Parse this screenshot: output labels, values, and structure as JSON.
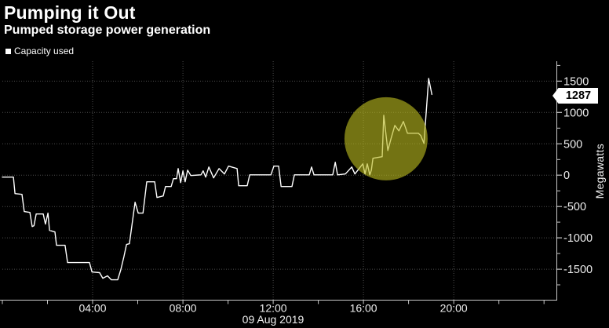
{
  "header": {
    "title": "Pumping it Out",
    "subtitle": "Pumped storage power generation",
    "legend": {
      "label": "Capacity used",
      "marker_color": "#ffffff"
    }
  },
  "colors": {
    "background": "#000000",
    "line": "#ffffff",
    "axis": "#c9c9c9",
    "grid": "#4d4d4d",
    "tick_label": "#ededed",
    "badge_bg": "#ffffff",
    "badge_text": "#000000",
    "highlight_circle": "#b9b91e"
  },
  "chart_data": {
    "type": "line",
    "title": "Pumping it Out",
    "subtitle": "Pumped storage power generation",
    "ylabel": "Megawatts",
    "xlabel": "",
    "x_unit": "hours",
    "x_date_label": "09 Aug 2019",
    "xlim": [
      0,
      24.55
    ],
    "ylim": [
      -2000,
      1818
    ],
    "grid": true,
    "legend_position": "top-left",
    "x_major_ticks": [
      {
        "hour": 4,
        "label": "04:00"
      },
      {
        "hour": 8,
        "label": "08:00"
      },
      {
        "hour": 12,
        "label": "12:00"
      },
      {
        "hour": 16,
        "label": "16:00"
      },
      {
        "hour": 20,
        "label": "20:00"
      }
    ],
    "x_minor_tick_every_hours": 2,
    "y_major_ticks": [
      1500,
      1000,
      500,
      0,
      -500,
      -1000,
      -1500
    ],
    "y_minor_ticks": [
      1750,
      1250,
      750,
      250,
      -250,
      -750,
      -1250,
      -1750
    ],
    "last_value": 1287,
    "annotation": {
      "type": "circle",
      "center_hour": 17.0,
      "center_value": 580,
      "radius_px": 53,
      "color": "#b9b91e",
      "opacity": 0.62
    },
    "series": [
      {
        "name": "Capacity used",
        "color": "#ffffff",
        "points": [
          [
            0,
            -31
          ],
          [
            0.49,
            -31
          ],
          [
            0.56,
            -294
          ],
          [
            0.87,
            -306
          ],
          [
            0.97,
            -581
          ],
          [
            1.22,
            -594
          ],
          [
            1.32,
            -819
          ],
          [
            1.4,
            -806
          ],
          [
            1.5,
            -619
          ],
          [
            1.81,
            -619
          ],
          [
            1.91,
            -781
          ],
          [
            2.02,
            -606
          ],
          [
            2.09,
            -881
          ],
          [
            2.33,
            -906
          ],
          [
            2.4,
            -1119
          ],
          [
            2.78,
            -1119
          ],
          [
            2.89,
            -1394
          ],
          [
            3.86,
            -1394
          ],
          [
            3.97,
            -1544
          ],
          [
            4.31,
            -1556
          ],
          [
            4.45,
            -1644
          ],
          [
            4.66,
            -1606
          ],
          [
            4.83,
            -1669
          ],
          [
            5.11,
            -1669
          ],
          [
            5.25,
            -1506
          ],
          [
            5.39,
            -1294
          ],
          [
            5.5,
            -1106
          ],
          [
            5.63,
            -1094
          ],
          [
            5.88,
            -431
          ],
          [
            6.02,
            -606
          ],
          [
            6.23,
            -606
          ],
          [
            6.4,
            -106
          ],
          [
            6.75,
            -106
          ],
          [
            6.85,
            -356
          ],
          [
            7.13,
            -331
          ],
          [
            7.23,
            -181
          ],
          [
            7.48,
            -181
          ],
          [
            7.58,
            -56
          ],
          [
            7.72,
            -56
          ],
          [
            7.79,
            106
          ],
          [
            7.9,
            -119
          ],
          [
            8,
            69
          ],
          [
            8.1,
            -106
          ],
          [
            8.21,
            81
          ],
          [
            8.35,
            -6
          ],
          [
            8.8,
            6
          ],
          [
            8.9,
            69
          ],
          [
            9.01,
            -31
          ],
          [
            9.15,
            131
          ],
          [
            9.36,
            -44
          ],
          [
            9.6,
            106
          ],
          [
            9.84,
            19
          ],
          [
            10.02,
            144
          ],
          [
            10.4,
            106
          ],
          [
            10.47,
            -169
          ],
          [
            10.85,
            -169
          ],
          [
            10.96,
            6
          ],
          [
            11.9,
            6
          ],
          [
            12.03,
            144
          ],
          [
            12.24,
            144
          ],
          [
            12.35,
            -181
          ],
          [
            12.83,
            -181
          ],
          [
            12.94,
            6
          ],
          [
            13.6,
            6
          ],
          [
            13.7,
            131
          ],
          [
            13.81,
            6
          ],
          [
            14.64,
            6
          ],
          [
            14.75,
            206
          ],
          [
            14.85,
            6
          ],
          [
            15.2,
            19
          ],
          [
            15.48,
            131
          ],
          [
            15.62,
            19
          ],
          [
            15.97,
            181
          ],
          [
            16.07,
            19
          ],
          [
            16.17,
            181
          ],
          [
            16.28,
            6
          ],
          [
            16.35,
            81
          ],
          [
            16.42,
            269
          ],
          [
            16.83,
            294
          ],
          [
            16.9,
            956
          ],
          [
            17.08,
            394
          ],
          [
            17.22,
            581
          ],
          [
            17.39,
            794
          ],
          [
            17.57,
            706
          ],
          [
            17.77,
            856
          ],
          [
            17.95,
            669
          ],
          [
            18.43,
            669
          ],
          [
            18.54,
            631
          ],
          [
            18.68,
            506
          ],
          [
            18.89,
            1544
          ],
          [
            19.03,
            1287
          ]
        ]
      }
    ]
  }
}
